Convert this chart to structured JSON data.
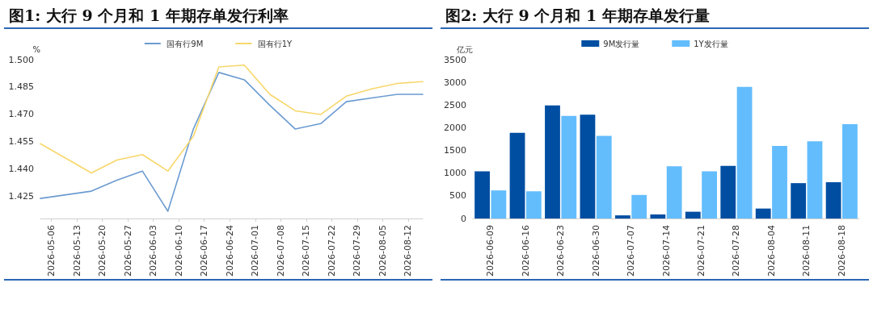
{
  "chart_data": [
    {
      "type": "line",
      "title": "图1: 大行 9 个月和 1 年期存单发行利率",
      "ylabel": "%",
      "x": [
        "2026-05-03",
        "2026-05-17",
        "2026-05-24",
        "2026-05-31",
        "2026-06-07",
        "2026-06-14",
        "2026-06-21",
        "2026-06-28",
        "2026-07-05",
        "2026-07-12",
        "2026-07-19",
        "2026-07-26",
        "2026-08-02",
        "2026-08-09",
        "2026-08-16"
      ],
      "series": [
        {
          "name": "国有行9M",
          "color": "#6b9bd1",
          "values": [
            1.424,
            1.428,
            1.434,
            1.439,
            1.417,
            1.462,
            1.493,
            1.489,
            1.475,
            1.462,
            1.465,
            1.477,
            1.479,
            1.481,
            1.481
          ]
        },
        {
          "name": "国有行1Y",
          "color": "#f7d76a",
          "values": [
            1.454,
            1.438,
            1.445,
            1.448,
            1.439,
            1.458,
            1.496,
            1.497,
            1.481,
            1.472,
            1.47,
            1.48,
            1.484,
            1.487,
            1.488
          ]
        }
      ],
      "xlim": [
        "2026-05-03",
        "2026-08-16"
      ],
      "xticks": [
        {
          "value": "2026-05-06",
          "label": "2026-05-06"
        },
        {
          "value": "2026-05-13",
          "label": "2026-05-13"
        },
        {
          "value": "2026-05-20",
          "label": "2026-05-20"
        },
        {
          "value": "2026-05-27",
          "label": "2026-05-27"
        },
        {
          "value": "2026-06-03",
          "label": "2026-06-03"
        },
        {
          "value": "2026-06-10",
          "label": "2026-06-10"
        },
        {
          "value": "2026-06-17",
          "label": "2026-06-17"
        },
        {
          "value": "2026-06-24",
          "label": "2026-06-24"
        },
        {
          "value": "2026-07-01",
          "label": "2026-07-01"
        },
        {
          "value": "2026-07-08",
          "label": "2026-07-08"
        },
        {
          "value": "2026-07-15",
          "label": "2026-07-15"
        },
        {
          "value": "2026-07-22",
          "label": "2026-07-22"
        },
        {
          "value": "2026-07-29",
          "label": "2026-07-29"
        },
        {
          "value": "2026-08-05",
          "label": "2026-08-05"
        },
        {
          "value": "2026-08-12",
          "label": "2026-08-12"
        }
      ],
      "ylim": [
        1.413,
        1.5
      ],
      "yticks": [
        {
          "value": 1.425,
          "label": "1.425"
        },
        {
          "value": 1.44,
          "label": "1.440"
        },
        {
          "value": 1.455,
          "label": "1.455"
        },
        {
          "value": 1.47,
          "label": "1.470"
        },
        {
          "value": 1.485,
          "label": "1.485"
        },
        {
          "value": 1.5,
          "label": "1.500"
        }
      ],
      "grid": false,
      "legend": "top",
      "marker": "none",
      "line_style": "solid"
    },
    {
      "type": "bar",
      "title": "图2: 大行 9 个月和 1 年期存单发行量",
      "ylabel": "亿元",
      "categories": [
        "2026-06-09",
        "2026-06-16",
        "2026-06-23",
        "2026-06-30",
        "2026-07-07",
        "2026-07-14",
        "2026-07-21",
        "2026-07-28",
        "2026-08-04",
        "2026-08-11",
        "2026-08-18"
      ],
      "series": [
        {
          "name": "9M发行量",
          "color": "#004ea2",
          "values": [
            1040,
            1890,
            2490,
            2290,
            70,
            90,
            150,
            1160,
            220,
            780,
            800
          ]
        },
        {
          "name": "1Y发行量",
          "color": "#63bdfd",
          "values": [
            620,
            600,
            2260,
            1820,
            520,
            1150,
            1040,
            2900,
            1600,
            1700,
            2080
          ]
        }
      ],
      "ylim": [
        0,
        3500
      ],
      "yticks": [
        0,
        500,
        1000,
        1500,
        2000,
        2500,
        3000,
        3500
      ],
      "grid": false,
      "legend": "top"
    }
  ]
}
